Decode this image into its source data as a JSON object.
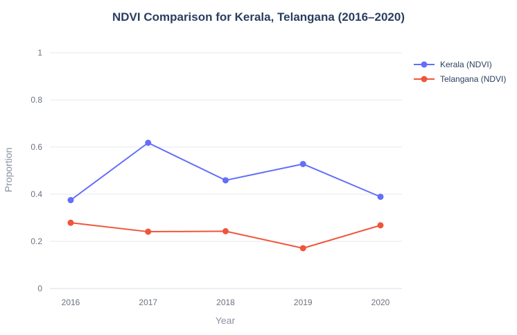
{
  "chart_data": {
    "type": "line",
    "title": "NDVI Comparison for Kerala, Telangana (2016–2020)",
    "xlabel": "Year",
    "ylabel": "Proportion",
    "x": [
      "2016",
      "2017",
      "2018",
      "2019",
      "2020"
    ],
    "ylim": [
      0,
      1
    ],
    "y_ticks": [
      "0",
      "0.2",
      "0.4",
      "0.6",
      "0.8",
      "1"
    ],
    "y_tick_values": [
      0,
      0.2,
      0.4,
      0.6,
      0.8,
      1
    ],
    "grid": true,
    "legend_position": "top-right",
    "series": [
      {
        "name": "Kerala (NDVI)",
        "color": "#636efa",
        "values": [
          0.375,
          0.618,
          0.459,
          0.528,
          0.389
        ]
      },
      {
        "name": "Telangana (NDVI)",
        "color": "#ef553b",
        "values": [
          0.279,
          0.241,
          0.243,
          0.171,
          0.268
        ]
      }
    ]
  }
}
